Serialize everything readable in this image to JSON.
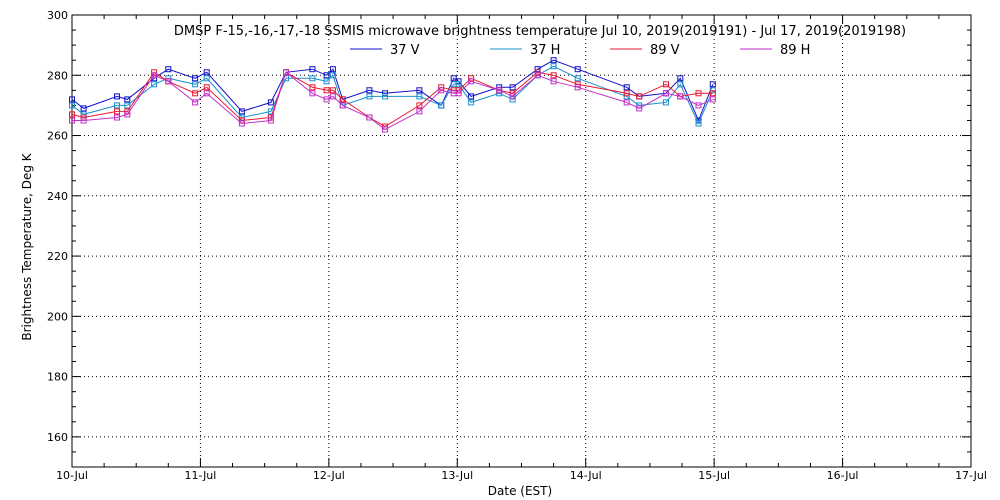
{
  "chart_data": {
    "type": "line",
    "title": "DMSP F-15,-16,-17,-18 SSMIS microwave brightness temperature Jul 10, 2019(2019191) - Jul 17, 2019(2019198)",
    "xlabel": "Date (EST)",
    "ylabel": "Brightness Temperature, Deg K",
    "x_axis": {
      "type": "date",
      "min": "2019-07-10",
      "max": "2019-07-17"
    },
    "ylim": [
      150,
      300
    ],
    "x_ticks": [
      "10-Jul",
      "11-Jul",
      "12-Jul",
      "13-Jul",
      "14-Jul",
      "15-Jul",
      "16-Jul",
      "17-Jul"
    ],
    "y_ticks": [
      160,
      180,
      200,
      220,
      240,
      260,
      280,
      300
    ],
    "grid": true,
    "legend_position": "top-center",
    "x": [
      "2019-07-10T00:00",
      "2019-07-10T02:10",
      "2019-07-10T08:25",
      "2019-07-10T10:20",
      "2019-07-10T15:20",
      "2019-07-10T18:00",
      "2019-07-10T23:00",
      "2019-07-11T01:10",
      "2019-07-11T07:45",
      "2019-07-11T13:10",
      "2019-07-11T16:00",
      "2019-07-11T20:55",
      "2019-07-11T23:35",
      "2019-07-12T00:45",
      "2019-07-12T02:35",
      "2019-07-12T07:35",
      "2019-07-12T10:30",
      "2019-07-12T16:55",
      "2019-07-12T21:00",
      "2019-07-12T23:20",
      "2019-07-13T00:15",
      "2019-07-13T02:35",
      "2019-07-13T07:50",
      "2019-07-13T10:20",
      "2019-07-13T15:00",
      "2019-07-13T18:00",
      "2019-07-13T22:30",
      "2019-07-14T07:40",
      "2019-07-14T10:00",
      "2019-07-14T15:00",
      "2019-07-14T17:40",
      "2019-07-14T21:05",
      "2019-07-14T23:45"
    ],
    "series": [
      {
        "name": "37 V",
        "color": "#1010c8",
        "values": [
          272,
          269,
          273,
          272,
          279,
          282,
          279,
          281,
          268,
          271,
          281,
          282,
          280,
          282,
          272,
          275,
          274,
          275,
          270,
          279,
          278,
          273,
          276,
          276,
          282,
          285,
          282,
          276,
          273,
          274,
          279,
          265,
          277
        ]
      },
      {
        "name": "37 H",
        "color": "#1a8fd0",
        "values": [
          270,
          267,
          270,
          270,
          277,
          279,
          277,
          279,
          266,
          268,
          279,
          279,
          278,
          280,
          270,
          273,
          273,
          273,
          270,
          277,
          277,
          271,
          274,
          272,
          280,
          283,
          279,
          273,
          270,
          271,
          277,
          264,
          275
        ]
      },
      {
        "name": "89 V",
        "color": "#e81830",
        "values": [
          267,
          266,
          268,
          268,
          281,
          278,
          274,
          276,
          265,
          266,
          281,
          276,
          275,
          275,
          272,
          266,
          263,
          270,
          276,
          275,
          275,
          279,
          275,
          274,
          281,
          280,
          277,
          274,
          273,
          277,
          273,
          274,
          274
        ]
      },
      {
        "name": "89 H",
        "color": "#c030c8",
        "values": [
          265,
          265,
          266,
          267,
          280,
          278,
          271,
          274,
          264,
          265,
          281,
          274,
          272,
          273,
          270,
          266,
          262,
          268,
          275,
          274,
          274,
          278,
          275,
          273,
          280,
          278,
          276,
          271,
          269,
          274,
          273,
          270,
          272
        ]
      }
    ]
  }
}
